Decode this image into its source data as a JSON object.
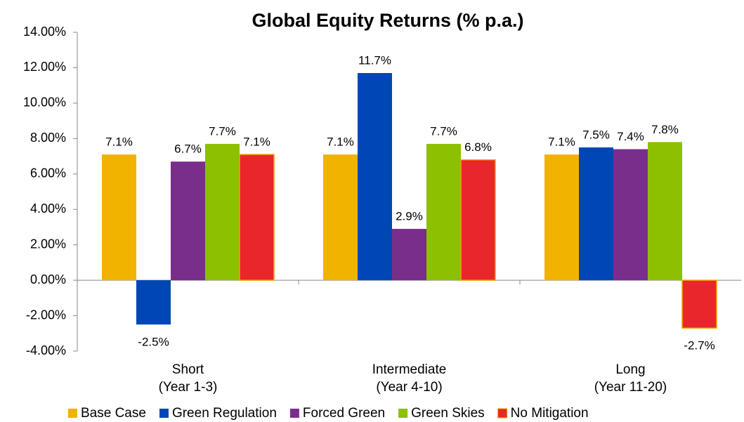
{
  "chart_data": {
    "type": "bar",
    "title": "Global Equity  Returns (% p.a.)",
    "categories": [
      "Short\n(Year 1-3)",
      "Intermediate\n(Year 4-10)",
      "Long\n(Year 11-20)"
    ],
    "series": [
      {
        "name": "Base Case",
        "color": "#f2b200",
        "values": [
          7.1,
          7.1,
          7.1
        ],
        "value_labels": [
          "7.1%",
          "7.1%",
          "7.1%"
        ]
      },
      {
        "name": "Green Regulation",
        "color": "#0047b5",
        "values": [
          -2.5,
          11.7,
          7.5
        ],
        "value_labels": [
          "-2.5%",
          "11.7%",
          "7.5%"
        ]
      },
      {
        "name": "Forced Green",
        "color": "#7a2e8c",
        "values": [
          6.7,
          2.9,
          7.4
        ],
        "value_labels": [
          "6.7%",
          "2.9%",
          "7.4%"
        ]
      },
      {
        "name": "Green Skies",
        "color": "#8cc000",
        "values": [
          7.7,
          7.7,
          7.8
        ],
        "value_labels": [
          "7.7%",
          "7.7%",
          "7.8%"
        ]
      },
      {
        "name": "No Mitigation",
        "color": "#e8262b",
        "edgecolor": "#f5a300",
        "values": [
          7.1,
          6.8,
          -2.7
        ],
        "value_labels": [
          "7.1%",
          "6.8%",
          "-2.7%"
        ]
      }
    ],
    "ylim": [
      -4,
      14
    ],
    "yticks": [
      {
        "value": -4,
        "label": "-4.00%"
      },
      {
        "value": -2,
        "label": "-2.00%"
      },
      {
        "value": 0,
        "label": "0.00%"
      },
      {
        "value": 2,
        "label": "2.00%"
      },
      {
        "value": 4,
        "label": "4.00%"
      },
      {
        "value": 6,
        "label": "6.00%"
      },
      {
        "value": 8,
        "label": "8.00%"
      },
      {
        "value": 10,
        "label": "10.00%"
      },
      {
        "value": 12,
        "label": "12.00%"
      },
      {
        "value": 14,
        "label": "14.00%"
      }
    ],
    "grid": false,
    "legend": "bottom"
  }
}
